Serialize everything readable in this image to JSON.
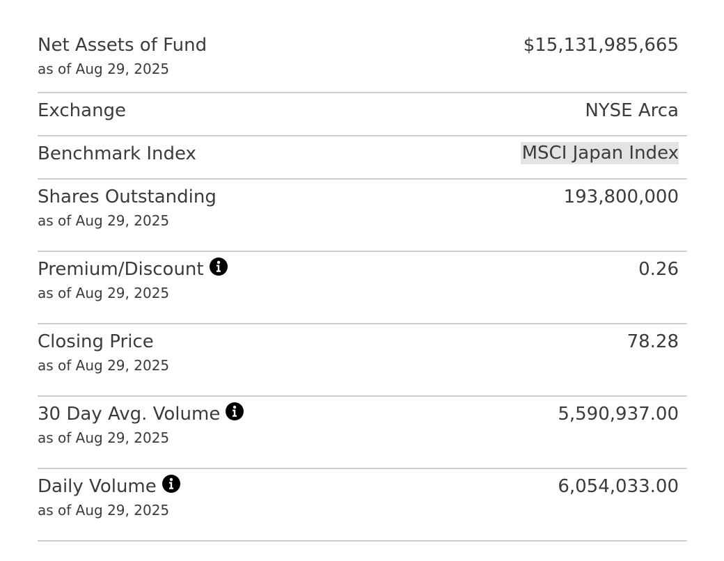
{
  "rows": [
    {
      "label": "Net Assets of Fund",
      "sub": "as of Aug 29, 2025",
      "value": "$15,131,985,665"
    },
    {
      "label": "Exchange",
      "value": "NYSE Arca"
    },
    {
      "label": "Benchmark Index",
      "value": "MSCI Japan Index"
    },
    {
      "label": "Shares Outstanding",
      "sub": "as of Aug 29, 2025",
      "value": "193,800,000"
    },
    {
      "label": "Premium/Discount",
      "sub": "as of Aug 29, 2025",
      "value": "0.26",
      "icon": "info-icon"
    },
    {
      "label": "Closing Price",
      "sub": "as of Aug 29, 2025",
      "value": "78.28"
    },
    {
      "label": "30 Day Avg. Volume",
      "sub": "as of Aug 29, 2025",
      "value": "5,590,937.00",
      "icon": "info-icon"
    },
    {
      "label": "Daily Volume",
      "sub": "as of Aug 29, 2025",
      "value": "6,054,033.00",
      "icon": "info-icon"
    }
  ]
}
